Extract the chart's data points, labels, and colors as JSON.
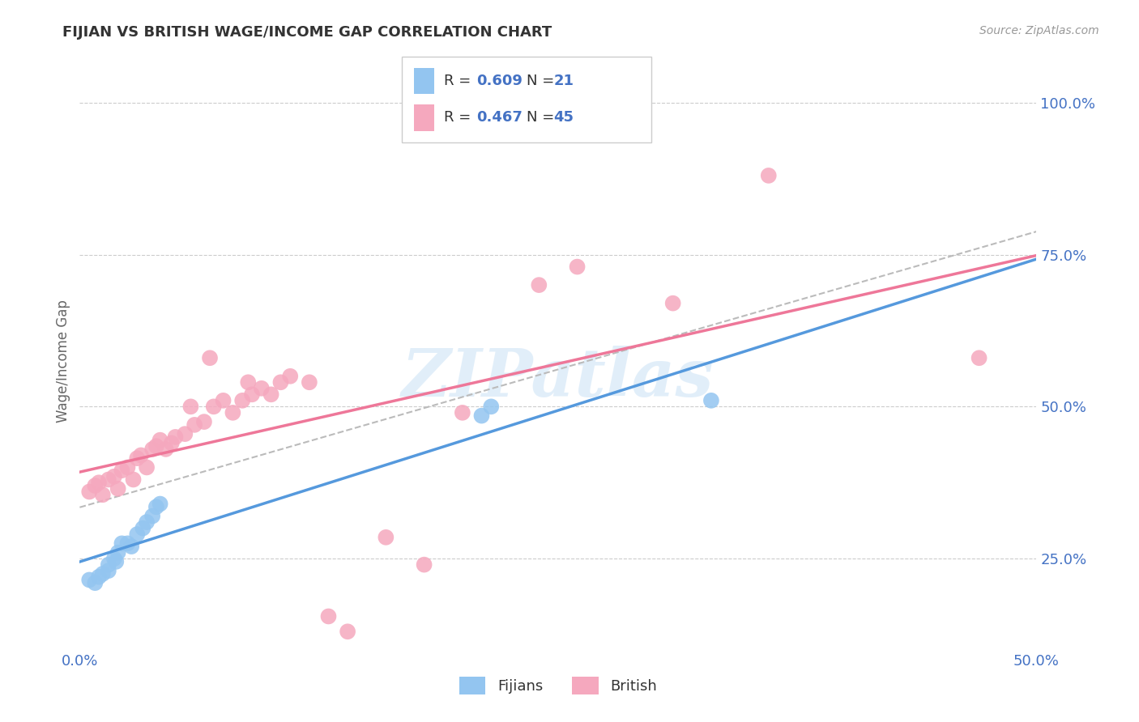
{
  "title": "FIJIAN VS BRITISH WAGE/INCOME GAP CORRELATION CHART",
  "source": "Source: ZipAtlas.com",
  "ylabel": "Wage/Income Gap",
  "xlim": [
    0.0,
    0.5
  ],
  "ylim": [
    0.1,
    1.05
  ],
  "fijians_color": "#93c5f0",
  "british_color": "#f5a8be",
  "trend_fijian_color": "#5599dd",
  "trend_british_color": "#ee7799",
  "trend_combined_color": "#bbbbbb",
  "watermark": "ZIPatlas",
  "fijians_x": [
    0.005,
    0.008,
    0.01,
    0.012,
    0.015,
    0.015,
    0.018,
    0.019,
    0.02,
    0.022,
    0.025,
    0.027,
    0.03,
    0.033,
    0.035,
    0.038,
    0.04,
    0.042,
    0.21,
    0.215,
    0.33
  ],
  "fijians_y": [
    0.215,
    0.21,
    0.22,
    0.225,
    0.23,
    0.24,
    0.25,
    0.245,
    0.26,
    0.275,
    0.275,
    0.27,
    0.29,
    0.3,
    0.31,
    0.32,
    0.335,
    0.34,
    0.485,
    0.5,
    0.51
  ],
  "british_x": [
    0.005,
    0.008,
    0.01,
    0.012,
    0.015,
    0.018,
    0.02,
    0.022,
    0.025,
    0.028,
    0.03,
    0.032,
    0.035,
    0.038,
    0.04,
    0.042,
    0.045,
    0.048,
    0.05,
    0.055,
    0.058,
    0.06,
    0.065,
    0.068,
    0.07,
    0.075,
    0.08,
    0.085,
    0.088,
    0.09,
    0.095,
    0.1,
    0.105,
    0.11,
    0.12,
    0.13,
    0.14,
    0.16,
    0.18,
    0.2,
    0.24,
    0.26,
    0.31,
    0.36,
    0.47
  ],
  "british_y": [
    0.36,
    0.37,
    0.375,
    0.355,
    0.38,
    0.385,
    0.365,
    0.395,
    0.4,
    0.38,
    0.415,
    0.42,
    0.4,
    0.43,
    0.435,
    0.445,
    0.43,
    0.44,
    0.45,
    0.455,
    0.5,
    0.47,
    0.475,
    0.58,
    0.5,
    0.51,
    0.49,
    0.51,
    0.54,
    0.52,
    0.53,
    0.52,
    0.54,
    0.55,
    0.54,
    0.155,
    0.13,
    0.285,
    0.24,
    0.49,
    0.7,
    0.73,
    0.67,
    0.88,
    0.58
  ],
  "background_color": "#ffffff",
  "grid_color": "#cccccc"
}
